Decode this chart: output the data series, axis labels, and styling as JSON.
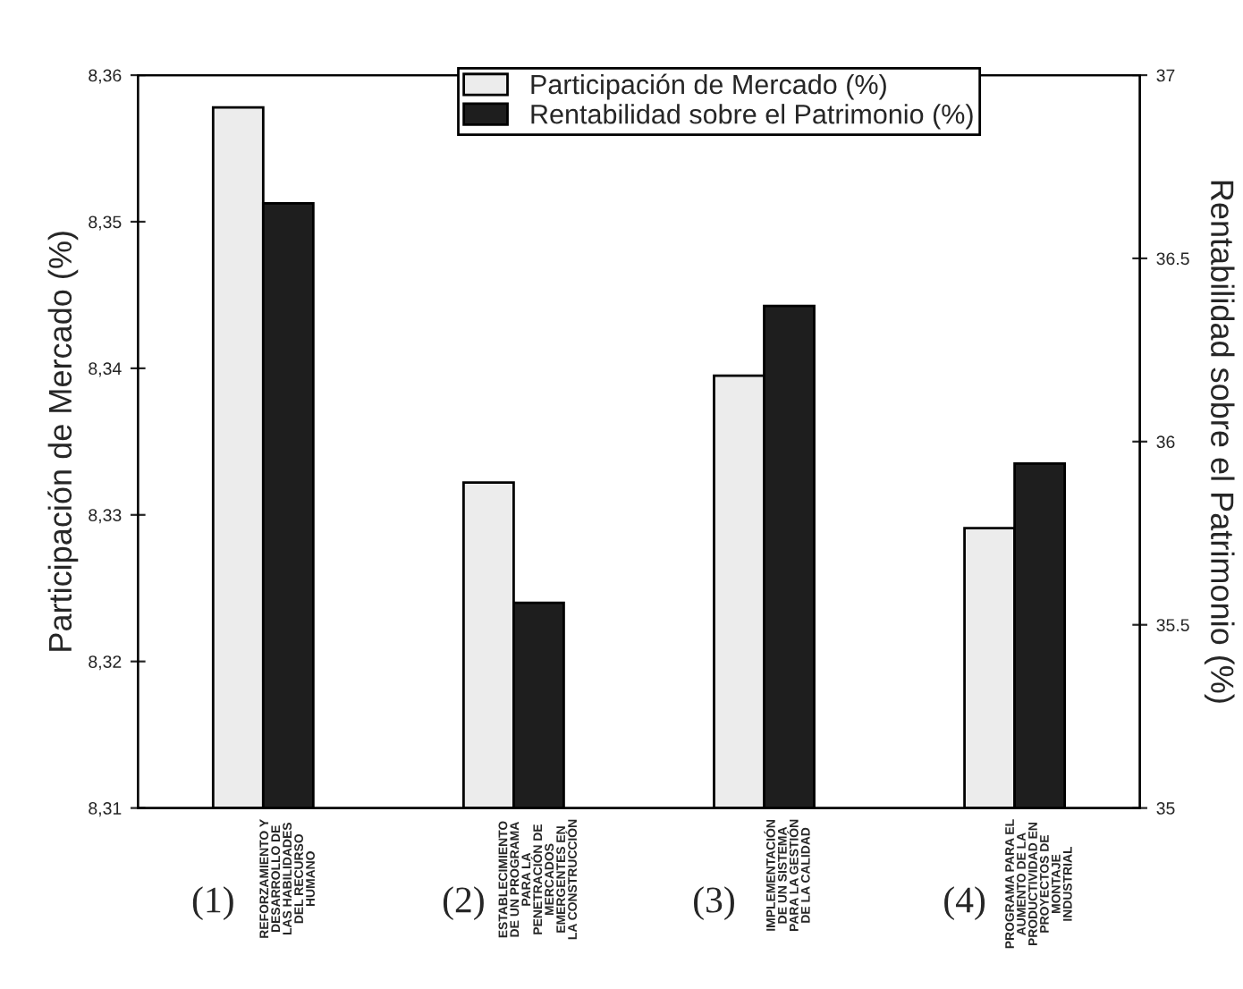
{
  "chart_data": {
    "type": "bar",
    "categories": [
      "(1)",
      "(2)",
      "(3)",
      "(4)"
    ],
    "series": [
      {
        "name": "Participación de Mercado (%)",
        "color": "#ececec",
        "values": [
          8.3578,
          8.3322,
          8.3395,
          8.3291
        ]
      },
      {
        "name": "Rentabilidad sobre el Patrimonio (%)",
        "color": "#1e1e1e",
        "values": [
          36.65,
          35.56,
          36.37,
          35.94
        ],
        "axis": "y2"
      }
    ],
    "ylabel": "Participación de Mercado (%)",
    "y2label": "Rentabilidad sobre el Patrimonio (%)",
    "ylim": [
      8.31,
      8.36
    ],
    "yticks": [
      {
        "value": 8.31,
        "label": "8,31"
      },
      {
        "value": 8.32,
        "label": "8,32"
      },
      {
        "value": 8.33,
        "label": "8,33"
      },
      {
        "value": 8.34,
        "label": "8,34"
      },
      {
        "value": 8.35,
        "label": "8,35"
      },
      {
        "value": 8.36,
        "label": "8,36"
      }
    ],
    "y2lim": [
      35,
      37
    ],
    "y2ticks": [
      35,
      35.5,
      36,
      36.5,
      37
    ],
    "annotations": [
      "REFORZAMIENTO Y\nDESARROLLO DE\nLAS HABILIDADES\nDEL RECURSO\nHUMANO",
      "ESTABLECIMIENTO\nDE UN PROGRAMA\nPARA LA\nPENETRACIÓN DE\nMERCADOS\nEMERGENTES EN\nLA CONSTRUCCIÓN",
      "IMPLEMENTACIÓN\nDE UN SISTEMA\nPARA LA GESTIÓN\nDE LA CALIDAD",
      "PROGRAMA PARA EL\nAUMENTO DE LA\nPRODUCTIVIDAD EN\nPROYECTOS DE\nMONTAJE\nINDUSTRIAL"
    ],
    "legend": "top",
    "grid": false
  }
}
